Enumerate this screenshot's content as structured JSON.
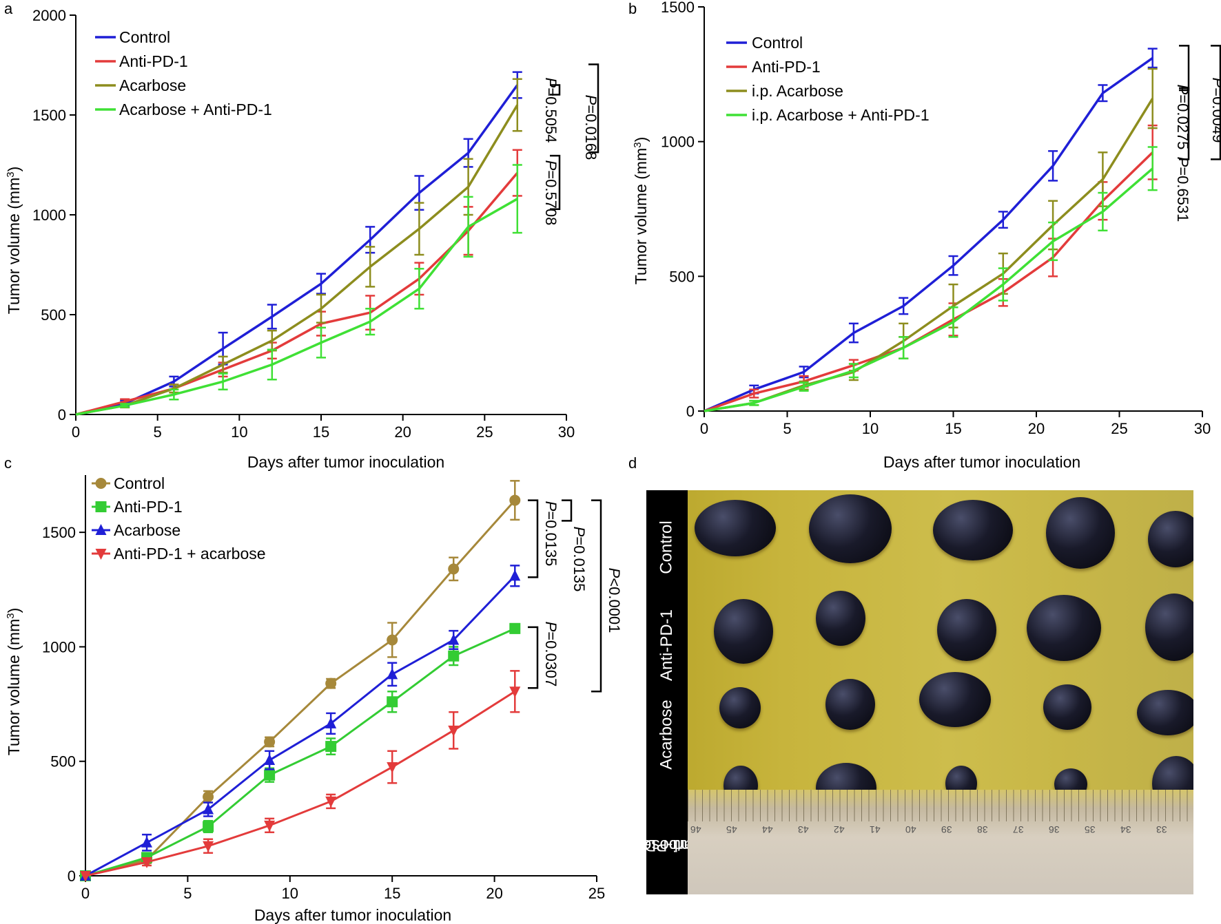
{
  "panel_labels": {
    "a": "a",
    "b": "b",
    "c": "c",
    "d": "d"
  },
  "chart_data": [
    {
      "panel": "a",
      "type": "line",
      "xlabel": "Days after tumor inoculation",
      "ylabel_main": "Tumor volume (mm",
      "ylabel_sup": "3",
      "ylabel_end": ")",
      "xlim": [
        0,
        30
      ],
      "ylim": [
        0,
        2000
      ],
      "xticks": [
        "0",
        "5",
        "10",
        "15",
        "20",
        "25",
        "30"
      ],
      "yticks": [
        "0",
        "500",
        "1000",
        "1500",
        "2000"
      ],
      "x": [
        0,
        3,
        6,
        9,
        12,
        15,
        18,
        21,
        24,
        27
      ],
      "series": [
        {
          "name": "Control",
          "color": "#1f1fd6",
          "values": [
            0,
            55,
            165,
            330,
            490,
            655,
            875,
            1110,
            1310,
            1650
          ],
          "errors": [
            0,
            15,
            25,
            80,
            60,
            50,
            65,
            85,
            70,
            65
          ]
        },
        {
          "name": "Anti-PD-1",
          "color": "#e33b3b",
          "values": [
            0,
            65,
            130,
            225,
            320,
            455,
            510,
            680,
            920,
            1210
          ],
          "errors": [
            0,
            12,
            20,
            35,
            40,
            60,
            85,
            80,
            120,
            115
          ]
        },
        {
          "name": "Acarbose",
          "color": "#8d8d1e",
          "values": [
            0,
            45,
            130,
            250,
            370,
            530,
            740,
            930,
            1140,
            1550
          ],
          "errors": [
            0,
            10,
            20,
            40,
            50,
            70,
            100,
            130,
            140,
            130
          ]
        },
        {
          "name": "Acarbose + Anti-PD-1",
          "color": "#3fe035",
          "values": [
            0,
            45,
            100,
            165,
            250,
            360,
            465,
            630,
            940,
            1080
          ],
          "errors": [
            0,
            8,
            25,
            40,
            75,
            75,
            65,
            100,
            150,
            170
          ]
        }
      ],
      "brackets": [
        {
          "label_italic": "P",
          "label_rest": "=0.5054"
        },
        {
          "label_italic": "P",
          "label_rest": "=0.0168"
        },
        {
          "label_italic": "P",
          "label_rest": "=0.5708"
        }
      ]
    },
    {
      "panel": "b",
      "type": "line",
      "xlabel": "Days after tumor inoculation",
      "ylabel_main": "Tumor volume (mm",
      "ylabel_sup": "3",
      "ylabel_end": ")",
      "xlim": [
        0,
        30
      ],
      "ylim": [
        0,
        1500
      ],
      "xticks": [
        "0",
        "5",
        "10",
        "15",
        "20",
        "25",
        "30"
      ],
      "yticks": [
        "0",
        "500",
        "1000",
        "1500"
      ],
      "x": [
        0,
        3,
        6,
        9,
        12,
        15,
        18,
        21,
        24,
        27
      ],
      "series": [
        {
          "name": "Control",
          "color": "#1f1fd6",
          "values": [
            0,
            80,
            145,
            290,
            390,
            540,
            710,
            910,
            1180,
            1310
          ],
          "errors": [
            0,
            15,
            20,
            35,
            30,
            35,
            30,
            55,
            30,
            35
          ]
        },
        {
          "name": "Anti-PD-1",
          "color": "#e33b3b",
          "values": [
            0,
            65,
            110,
            170,
            235,
            340,
            440,
            570,
            780,
            960
          ],
          "errors": [
            0,
            15,
            20,
            20,
            40,
            60,
            50,
            70,
            70,
            100
          ]
        },
        {
          "name": "i.p. Acarbose",
          "color": "#8d8d1e",
          "values": [
            0,
            30,
            95,
            145,
            260,
            390,
            510,
            690,
            860,
            1160
          ],
          "errors": [
            0,
            8,
            15,
            30,
            65,
            80,
            75,
            90,
            100,
            110
          ]
        },
        {
          "name": "i.p. Acarbose  + Anti-PD-1",
          "color": "#3fe035",
          "values": [
            0,
            30,
            90,
            150,
            235,
            330,
            470,
            630,
            740,
            900
          ],
          "errors": [
            0,
            8,
            15,
            25,
            40,
            55,
            60,
            70,
            70,
            80
          ]
        }
      ],
      "brackets": [
        {
          "label_italic": "P",
          "label_rest": "=0.0275"
        },
        {
          "label_italic": "P",
          "label_rest": "=0.0049"
        },
        {
          "label_italic": "P",
          "label_rest": "=0.6531"
        }
      ]
    },
    {
      "panel": "c",
      "type": "line",
      "xlabel": "Days after tumor inoculation",
      "ylabel_main": "Tumor volume (mm",
      "ylabel_sup": "3",
      "ylabel_end": ")",
      "xlim": [
        0,
        25
      ],
      "ylim": [
        0,
        1750
      ],
      "xticks": [
        "0",
        "5",
        "10",
        "15",
        "20",
        "25"
      ],
      "yticks": [
        "0",
        "500",
        "1000",
        "1500"
      ],
      "x": [
        0,
        3,
        6,
        9,
        12,
        15,
        18,
        21
      ],
      "series": [
        {
          "name": "Control",
          "color": "#a6883a",
          "marker": "circle",
          "values": [
            0,
            70,
            345,
            585,
            840,
            1030,
            1340,
            1640
          ],
          "errors": [
            0,
            15,
            25,
            20,
            20,
            75,
            50,
            85
          ]
        },
        {
          "name": "Anti-PD-1",
          "color": "#33cc33",
          "marker": "square",
          "values": [
            0,
            80,
            215,
            440,
            565,
            760,
            960,
            1080
          ],
          "errors": [
            0,
            15,
            25,
            30,
            35,
            45,
            40,
            20
          ]
        },
        {
          "name": "Acarbose",
          "color": "#1f1fd6",
          "marker": "triangle-up",
          "values": [
            0,
            145,
            290,
            505,
            665,
            880,
            1030,
            1310
          ],
          "errors": [
            0,
            35,
            30,
            40,
            45,
            50,
            40,
            45
          ]
        },
        {
          "name": "Anti-PD-1 + acarbose",
          "color": "#e33b3b",
          "marker": "triangle-down",
          "values": [
            0,
            60,
            130,
            220,
            325,
            475,
            635,
            805
          ],
          "errors": [
            0,
            15,
            30,
            30,
            30,
            70,
            80,
            90
          ]
        }
      ],
      "legend_glyphs": [
        "●",
        "■",
        "▲",
        "▼"
      ],
      "brackets": [
        {
          "label_italic": "P",
          "label_rest": "=0.0135"
        },
        {
          "label_italic": "P",
          "label_rest": "=0.0135"
        },
        {
          "label_italic": "P",
          "label_rest": "<0.0001"
        },
        {
          "label_italic": "P",
          "label_rest": "=0.0307"
        }
      ]
    }
  ],
  "photo": {
    "row_labels": [
      "Control",
      "Anti-PD-1",
      "Acarbose",
      "Anti-PD-1 +",
      "acarbose"
    ],
    "ruler_numbers": [
      "46",
      "45",
      "44",
      "43",
      "42",
      "41",
      "40",
      "39",
      "38",
      "37",
      "36",
      "35",
      "34",
      "33"
    ]
  }
}
